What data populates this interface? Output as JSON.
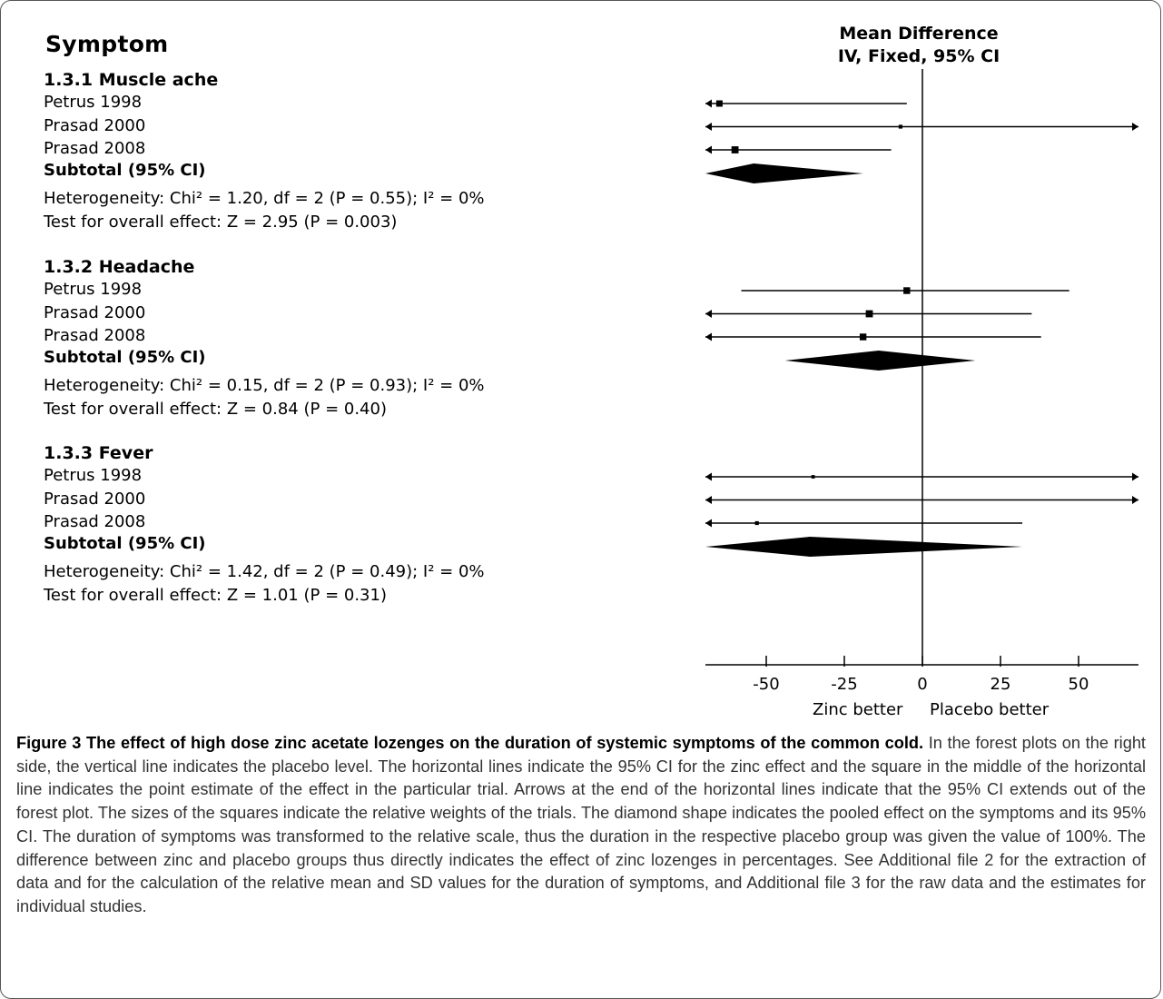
{
  "header": {
    "column_title": "Symptom",
    "effect_title_line1": "Mean Difference",
    "effect_title_line2": "IV, Fixed, 95% CI"
  },
  "chart_data": {
    "type": "forest",
    "measure": "Mean Difference (IV, Fixed, 95% CI)",
    "xlim": [
      -70,
      70
    ],
    "xticks": [
      -50,
      -25,
      0,
      25,
      50
    ],
    "null_line": 0,
    "direction_labels": {
      "left": "Zinc better",
      "right": "Placebo better"
    },
    "groups": [
      {
        "title": "1.3.1 Muscle ache",
        "studies": [
          {
            "name": "Petrus 1998",
            "estimate": -65,
            "ci_low": -140,
            "ci_high": -5,
            "weight": 0.5
          },
          {
            "name": "Prasad 2000",
            "estimate": -7,
            "ci_low": -140,
            "ci_high": 120,
            "weight": 0.15
          },
          {
            "name": "Prasad 2008",
            "estimate": -60,
            "ci_low": -120,
            "ci_high": -10,
            "weight": 0.6
          }
        ],
        "subtotal_label": "Subtotal (95% CI)",
        "subtotal": {
          "estimate": -54,
          "ci_low": -75,
          "ci_high": -19
        },
        "heterogeneity": "Heterogeneity: Chi² = 1.20, df = 2 (P = 0.55); I² = 0%",
        "overall_effect": "Test for overall effect: Z = 2.95 (P = 0.003)"
      },
      {
        "title": "1.3.2 Headache",
        "studies": [
          {
            "name": "Petrus 1998",
            "estimate": -5,
            "ci_low": -58,
            "ci_high": 47,
            "weight": 0.55
          },
          {
            "name": "Prasad 2000",
            "estimate": -17,
            "ci_low": -70,
            "ci_high": 35,
            "weight": 0.6
          },
          {
            "name": "Prasad 2008",
            "estimate": -19,
            "ci_low": -110,
            "ci_high": 38,
            "weight": 0.55
          }
        ],
        "subtotal_label": "Subtotal (95% CI)",
        "subtotal": {
          "estimate": -14,
          "ci_low": -44,
          "ci_high": 17
        },
        "heterogeneity": "Heterogeneity: Chi² = 0.15, df = 2 (P = 0.93); I² = 0%",
        "overall_effect": "Test for overall effect: Z = 0.84 (P = 0.40)"
      },
      {
        "title": "1.3.3 Fever",
        "studies": [
          {
            "name": "Petrus 1998",
            "estimate": -35,
            "ci_low": -140,
            "ci_high": 120,
            "weight": 0.1
          },
          {
            "name": "Prasad 2000",
            "estimate": 0,
            "ci_low": -140,
            "ci_high": 120,
            "weight": 0.0
          },
          {
            "name": "Prasad 2008",
            "estimate": -53,
            "ci_low": -120,
            "ci_high": 32,
            "weight": 0.15
          }
        ],
        "subtotal_label": "Subtotal (95% CI)",
        "subtotal": {
          "estimate": -36,
          "ci_low": -110,
          "ci_high": 32
        },
        "heterogeneity": "Heterogeneity: Chi² = 1.42, df = 2 (P = 0.49); I² = 0%",
        "overall_effect": "Test for overall effect: Z = 1.01 (P = 0.31)"
      }
    ]
  },
  "caption": {
    "title": "Figure 3 The effect of high dose zinc acetate lozenges on the duration of systemic symptoms of the common cold.",
    "body": "In the forest plots on the right side, the vertical line indicates the placebo level. The horizontal lines indicate the 95% CI for the zinc effect and the square in the middle of the horizontal line indicates the point estimate of the effect in the particular trial. Arrows at the end of the horizontal lines indicate that the 95% CI extends out of the forest plot. The sizes of the squares indicate the relative weights of the trials. The diamond shape indicates the pooled effect on the symptoms and its 95% CI. The duration of symptoms was transformed to the relative scale, thus the duration in the respective placebo group was given the value of 100%. The difference between zinc and placebo groups thus directly indicates the effect of zinc lozenges in percentages. See Additional file 2 for the extraction of data and for the calculation of the relative mean and SD values for the duration of symptoms, and Additional file 3 for the raw data and the estimates for individual studies."
  }
}
